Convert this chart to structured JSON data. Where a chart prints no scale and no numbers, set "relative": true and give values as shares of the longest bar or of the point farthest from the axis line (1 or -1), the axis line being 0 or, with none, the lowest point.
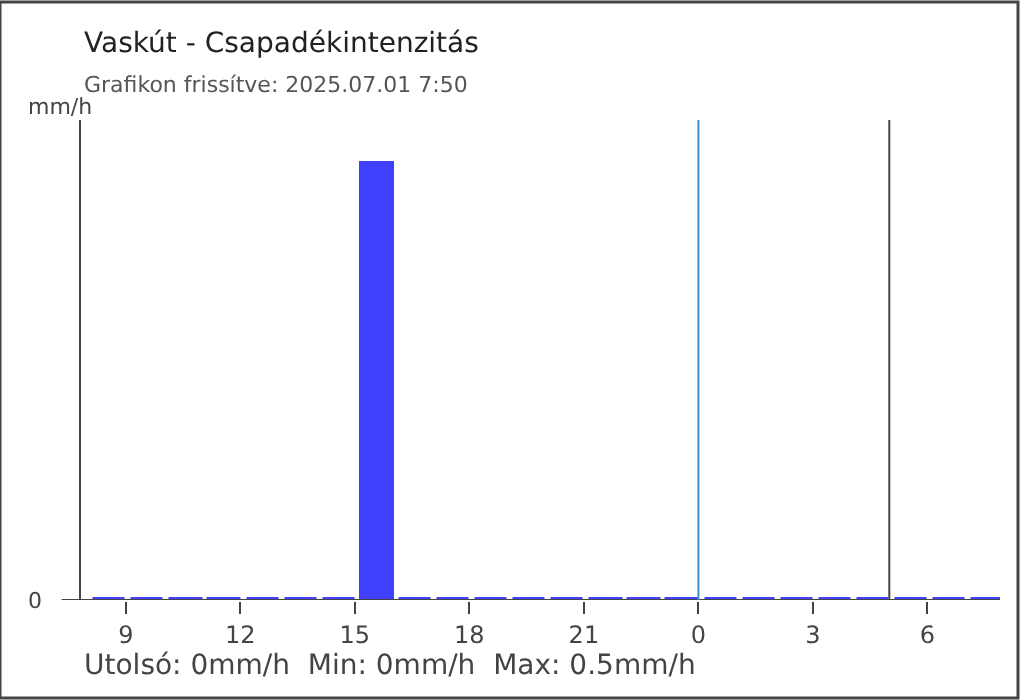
{
  "chart_data": {
    "type": "bar",
    "title": "Vaskút - Csapadékintenzitás",
    "subtitle": "Grafikon frissítve: 2025.07.01 7:50",
    "ylabel": "mm/h",
    "relative": true,
    "x": [
      "2025-06-30T08:36",
      "2025-06-30T09:36",
      "2025-06-30T10:36",
      "2025-06-30T11:36",
      "2025-06-30T12:36",
      "2025-06-30T13:36",
      "2025-06-30T14:36",
      "2025-06-30T15:36",
      "2025-06-30T16:36",
      "2025-06-30T17:36",
      "2025-06-30T18:36",
      "2025-06-30T19:36",
      "2025-06-30T20:36",
      "2025-06-30T21:36",
      "2025-06-30T22:36",
      "2025-06-30T23:36",
      "2025-07-01T00:36",
      "2025-07-01T01:36",
      "2025-07-01T02:36",
      "2025-07-01T03:36",
      "2025-07-01T04:36",
      "2025-07-01T05:36",
      "2025-07-01T06:36",
      "2025-07-01T07:36"
    ],
    "series": [
      {
        "color": "#4040ff",
        "values": [
          0,
          0,
          0,
          0,
          0,
          0,
          0,
          1,
          0,
          0,
          0,
          0,
          0,
          0,
          0,
          0,
          0,
          0,
          0,
          0,
          0,
          0,
          0,
          0
        ]
      }
    ],
    "xlim": [
      "2025-06-30T07:48",
      "2025-07-01T07:54"
    ],
    "xticks": [
      {
        "value": "2025-06-30T09:00",
        "label": "9"
      },
      {
        "value": "2025-06-30T12:00",
        "label": "12"
      },
      {
        "value": "2025-06-30T15:00",
        "label": "15"
      },
      {
        "value": "2025-06-30T18:00",
        "label": "18"
      },
      {
        "value": "2025-06-30T21:00",
        "label": "21"
      },
      {
        "value": "2025-07-01T00:00",
        "label": "0"
      },
      {
        "value": "2025-07-01T03:00",
        "label": "3"
      },
      {
        "value": "2025-07-01T06:00",
        "label": "6"
      }
    ],
    "ref_lines": [
      {
        "axis": "x",
        "value": "2025-07-01T00:00",
        "color": "#3a8fd0"
      },
      {
        "axis": "x",
        "value": "2025-07-01T05:00",
        "color": "#444444"
      }
    ],
    "annotations": [
      "0",
      "Utolsó: 0mm/h  Min: 0mm/h  Max: 0.5mm/h"
    ]
  }
}
